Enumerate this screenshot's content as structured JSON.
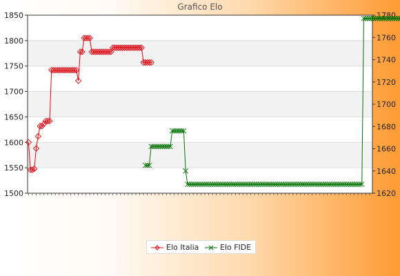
{
  "chart_data": {
    "type": "line",
    "title": "Grafico Elo",
    "y_left": {
      "min": 1500,
      "max": 1850,
      "ticks": [
        1500,
        1550,
        1600,
        1650,
        1700,
        1750,
        1800,
        1850
      ]
    },
    "y_right": {
      "min": 1620,
      "max": 1780,
      "ticks": [
        1620,
        1640,
        1660,
        1680,
        1700,
        1720,
        1740,
        1760,
        1780
      ]
    },
    "grid": true,
    "legend_position": "bottom",
    "series": [
      {
        "name": "Elo Italia",
        "axis": "left",
        "color": "#e8000b",
        "marker": "diamond",
        "values": [
          1600,
          1546,
          1546,
          1548,
          1588,
          1612,
          1632,
          1632,
          1636,
          1642,
          1642,
          1642,
          1742,
          1742,
          1742,
          1742,
          1742,
          1742,
          1742,
          1742,
          1742,
          1742,
          1742,
          1742,
          1742,
          1742,
          1721,
          1778,
          1778,
          1805,
          1805,
          1805,
          1805,
          1778,
          1778,
          1778,
          1778,
          1778,
          1778,
          1778,
          1778,
          1778,
          1778,
          1778,
          1786,
          1786,
          1786,
          1786,
          1786,
          1786,
          1786,
          1786,
          1786,
          1786,
          1786,
          1786,
          1786,
          1786,
          1786,
          1786,
          1757,
          1757,
          1757,
          1757,
          1757
        ]
      },
      {
        "name": "Elo FIDE",
        "axis": "right",
        "color": "#007000",
        "marker": "cross",
        "values": [
          1645,
          1645,
          1645,
          1662,
          1662,
          1662,
          1662,
          1662,
          1662,
          1662,
          1662,
          1662,
          1662,
          1662,
          1676,
          1676,
          1676,
          1676,
          1676,
          1676,
          1676,
          1640,
          1628,
          1628,
          1628,
          1628,
          1628,
          1628,
          1628,
          1628,
          1628,
          1628,
          1628,
          1628,
          1628,
          1628,
          1628,
          1628,
          1628,
          1628,
          1628,
          1628,
          1628,
          1628,
          1628,
          1628,
          1628,
          1628,
          1628,
          1628,
          1628,
          1628,
          1628,
          1628,
          1628,
          1628,
          1628,
          1628,
          1628,
          1628,
          1628,
          1628,
          1628,
          1628,
          1628,
          1628,
          1628,
          1628,
          1628,
          1628,
          1628,
          1628,
          1628,
          1628,
          1628,
          1628,
          1628,
          1628,
          1628,
          1628,
          1628,
          1628,
          1628,
          1628,
          1628,
          1628,
          1628,
          1628,
          1628,
          1628,
          1628,
          1628,
          1628,
          1628,
          1628,
          1628,
          1628,
          1628,
          1628,
          1628,
          1628,
          1628,
          1628,
          1628,
          1628,
          1628,
          1628,
          1628,
          1628,
          1628,
          1628,
          1628,
          1628,
          1628,
          1777,
          1777,
          1777,
          1777,
          1777,
          1777,
          1777,
          1777,
          1777,
          1777,
          1777,
          1777,
          1777,
          1777,
          1777,
          1777,
          1777,
          1777,
          1777,
          1777,
          1777,
          1777,
          1777,
          1777,
          1777,
          1777,
          1777,
          1777,
          1777,
          1777,
          1777
        ]
      }
    ]
  }
}
